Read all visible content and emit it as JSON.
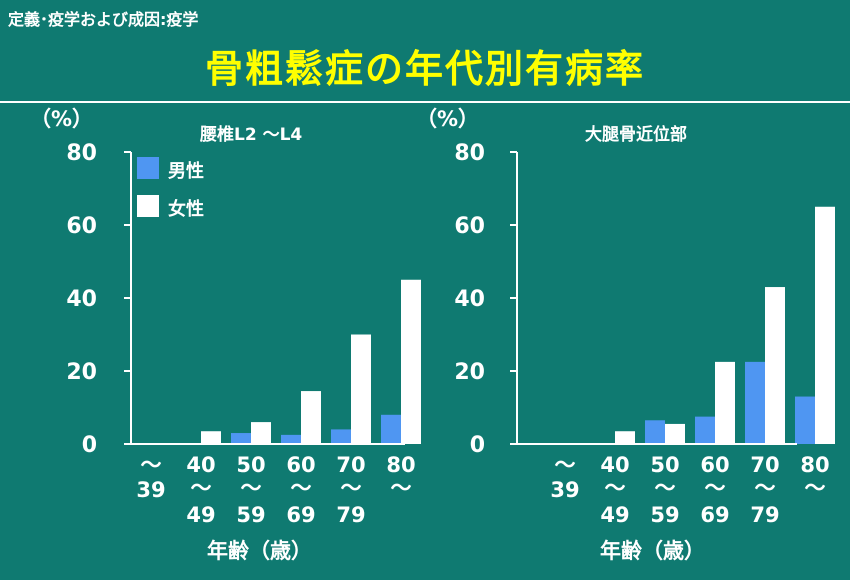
{
  "header": {
    "breadcrumb": "定義･疫学および成因:疫学",
    "title": "骨粗鬆症の年代別有病率"
  },
  "colors": {
    "background": "#0f7a71",
    "title": "#ffff00",
    "male": "#4f96f2",
    "female": "#ffffff"
  },
  "chart_data": [
    {
      "type": "bar",
      "title": "腰椎L2 ～L4",
      "ylabel": "（%）",
      "xlabel": "年齢（歳）",
      "ylim": [
        0,
        80
      ],
      "yticks": [
        "0",
        "20",
        "40",
        "60",
        "80"
      ],
      "categories": [
        {
          "top": "",
          "sep1": "～",
          "mid": "39",
          "sep2": "",
          "bottom": ""
        },
        {
          "top": "40",
          "sep1": "",
          "mid": "～",
          "sep2": "",
          "bottom": "49"
        },
        {
          "top": "50",
          "sep1": "",
          "mid": "～",
          "sep2": "",
          "bottom": "59"
        },
        {
          "top": "60",
          "sep1": "",
          "mid": "～",
          "sep2": "",
          "bottom": "69"
        },
        {
          "top": "70",
          "sep1": "",
          "mid": "～",
          "sep2": "",
          "bottom": "79"
        },
        {
          "top": "80",
          "sep1": "",
          "mid": "～",
          "sep2": "",
          "bottom": ""
        }
      ],
      "legend": [
        "男性",
        "女性"
      ],
      "series": [
        {
          "name": "男性",
          "values": [
            0,
            0,
            3,
            2.5,
            4,
            8
          ]
        },
        {
          "name": "女性",
          "values": [
            0,
            3.5,
            6,
            14.5,
            30,
            45
          ]
        }
      ]
    },
    {
      "type": "bar",
      "title": "大腿骨近位部",
      "ylabel": "（%）",
      "xlabel": "年齢（歳）",
      "ylim": [
        0,
        80
      ],
      "yticks": [
        "0",
        "20",
        "40",
        "60",
        "80"
      ],
      "categories": [
        {
          "top": "",
          "sep1": "～",
          "mid": "39",
          "sep2": "",
          "bottom": ""
        },
        {
          "top": "40",
          "sep1": "",
          "mid": "～",
          "sep2": "",
          "bottom": "49"
        },
        {
          "top": "50",
          "sep1": "",
          "mid": "～",
          "sep2": "",
          "bottom": "59"
        },
        {
          "top": "60",
          "sep1": "",
          "mid": "～",
          "sep2": "",
          "bottom": "69"
        },
        {
          "top": "70",
          "sep1": "",
          "mid": "～",
          "sep2": "",
          "bottom": "79"
        },
        {
          "top": "80",
          "sep1": "",
          "mid": "～",
          "sep2": "",
          "bottom": ""
        }
      ],
      "series": [
        {
          "name": "男性",
          "values": [
            0,
            0,
            6.5,
            7.5,
            22.5,
            13
          ]
        },
        {
          "name": "女性",
          "values": [
            0,
            3.5,
            5.5,
            22.5,
            43,
            65
          ]
        }
      ]
    }
  ]
}
